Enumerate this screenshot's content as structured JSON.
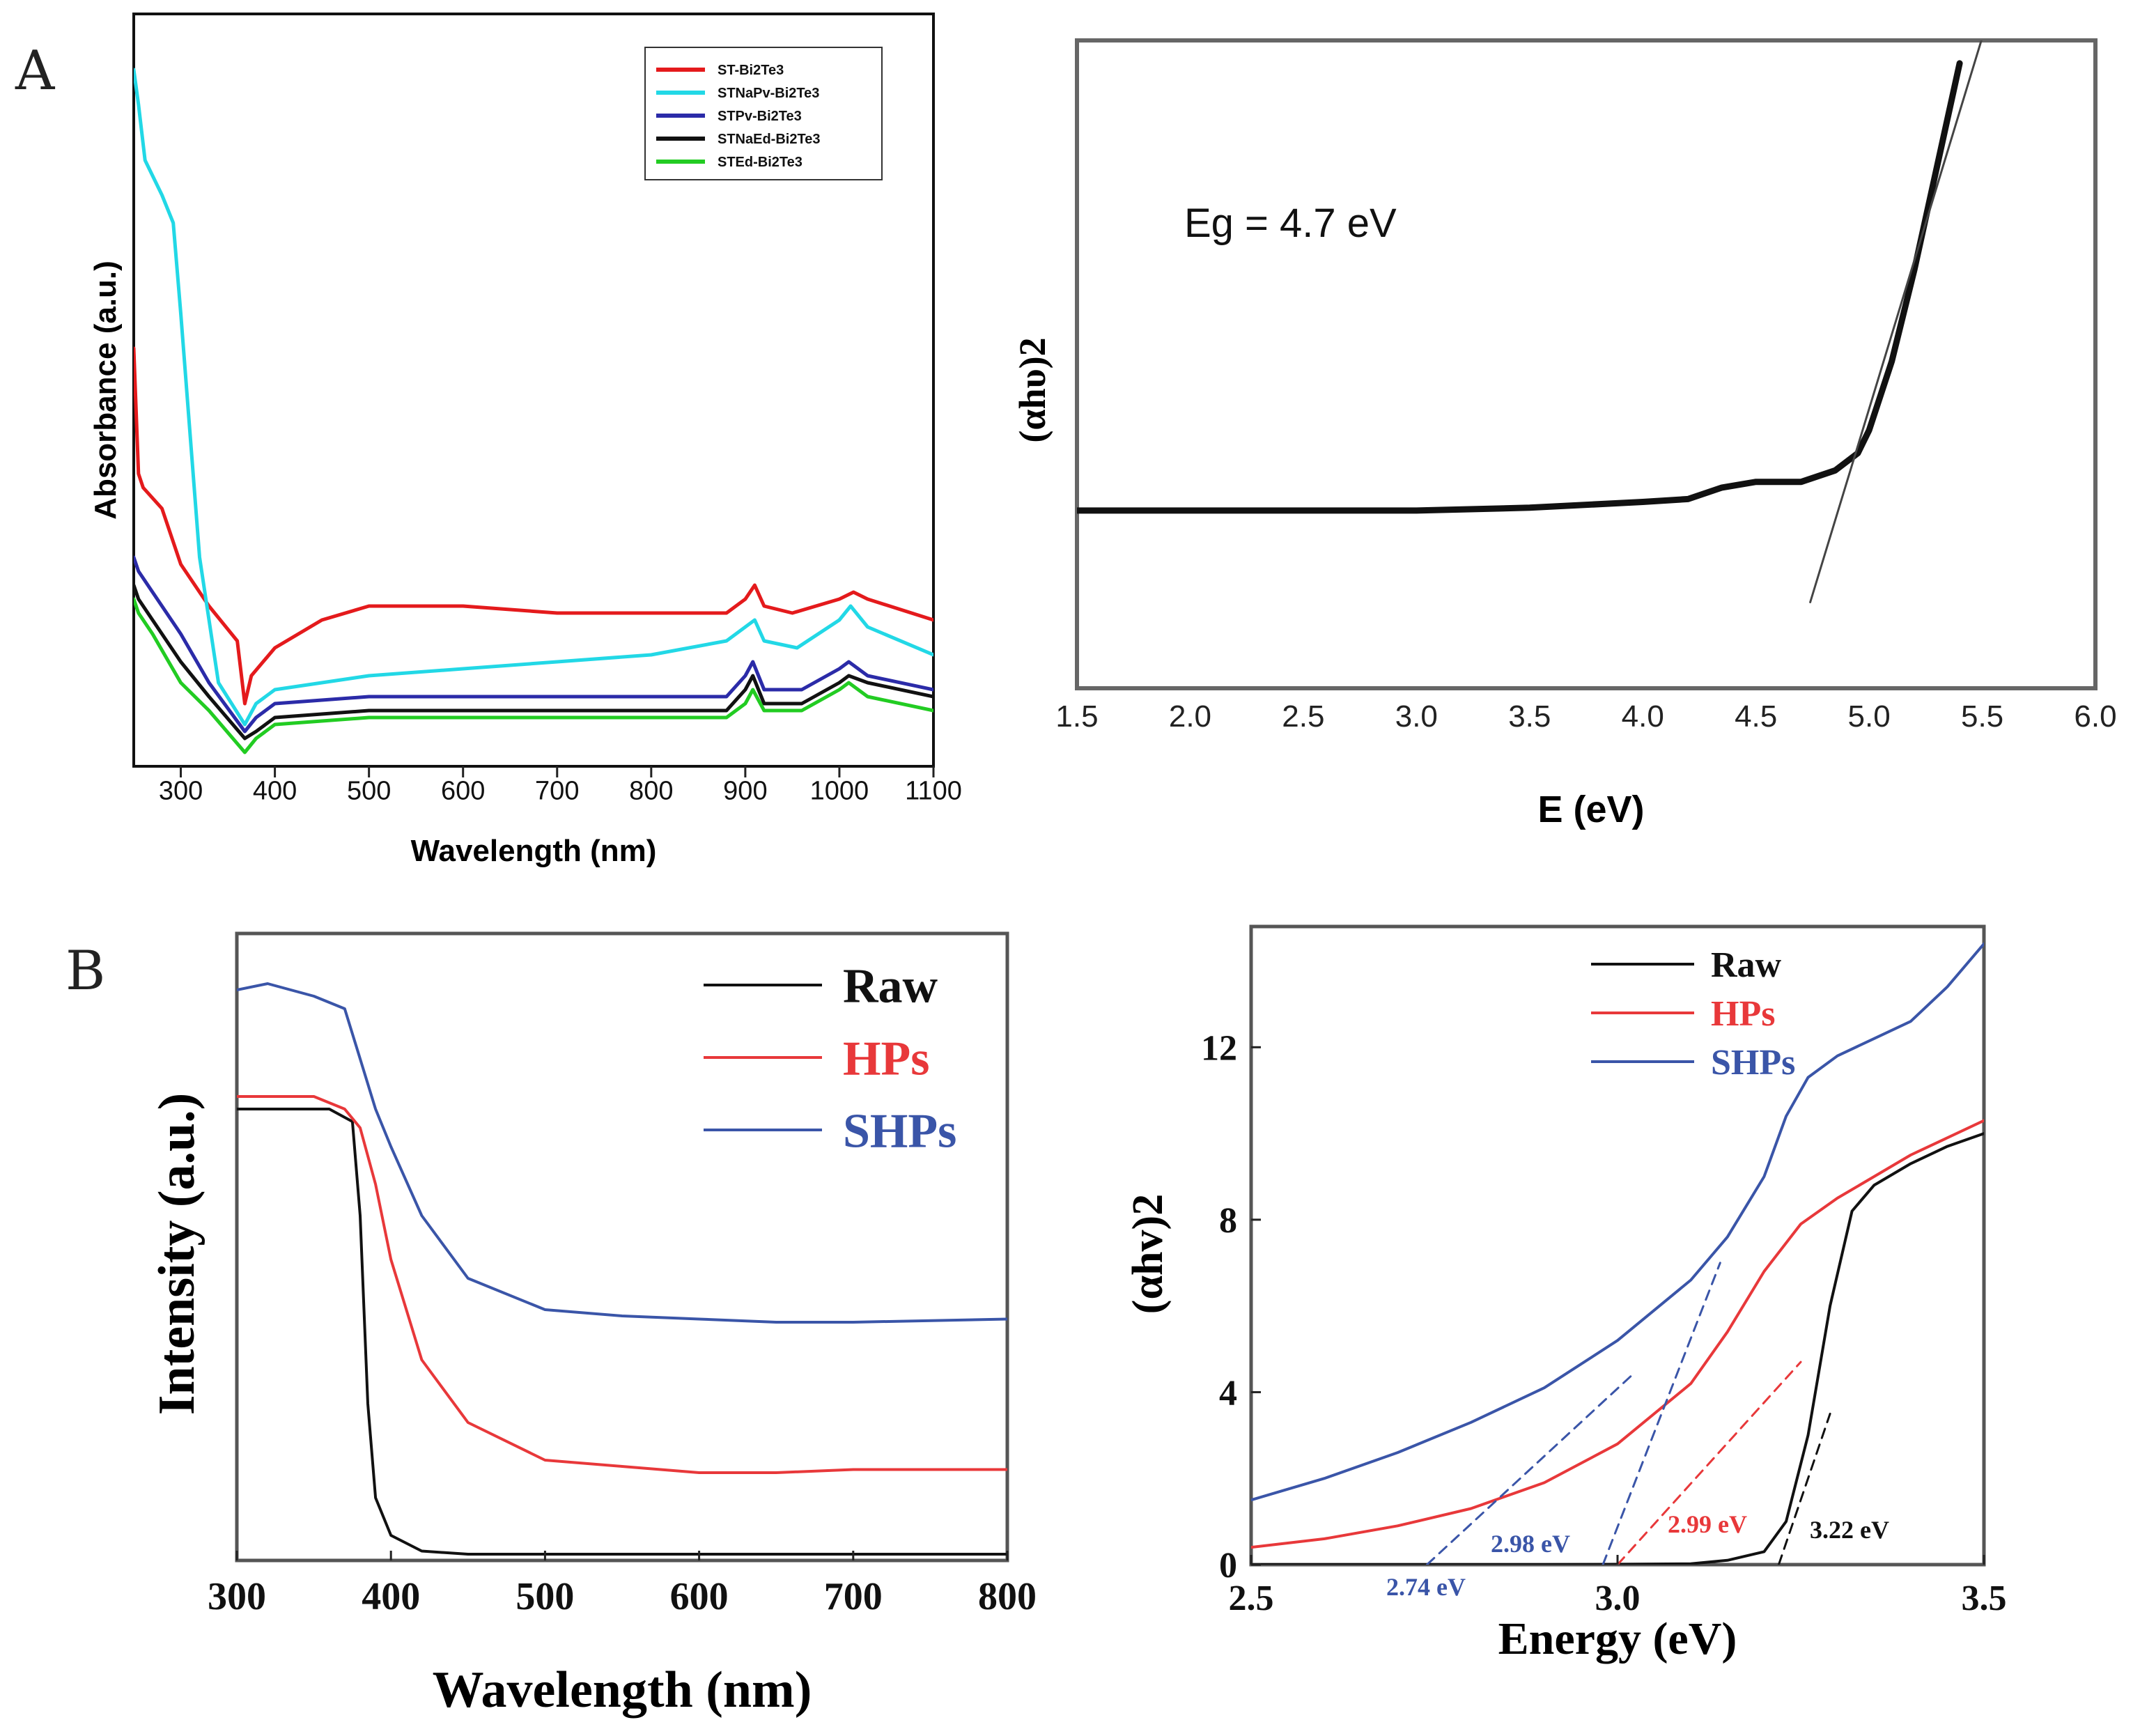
{
  "panel_labels": {
    "a": "A",
    "b": "B"
  },
  "chart_data": [
    {
      "id": "a-left",
      "type": "line",
      "title": "",
      "xlabel": "Wavelength (nm)",
      "ylabel": "Absorbance (a.u.)",
      "xlim": [
        250,
        1100
      ],
      "ylim": [
        0,
        1
      ],
      "xticks": [
        300,
        400,
        500,
        600,
        700,
        800,
        900,
        1000,
        1100
      ],
      "legend": "top-right",
      "series": [
        {
          "name": "ST-Bi2Te3",
          "color": "#e41a1c",
          "x": [
            250,
            255,
            260,
            280,
            300,
            330,
            360,
            368,
            375,
            400,
            450,
            500,
            600,
            700,
            800,
            880,
            900,
            910,
            920,
            950,
            1000,
            1015,
            1030,
            1100
          ],
          "y": [
            0.6,
            0.42,
            0.4,
            0.37,
            0.29,
            0.23,
            0.18,
            0.09,
            0.13,
            0.17,
            0.21,
            0.23,
            0.23,
            0.22,
            0.22,
            0.22,
            0.24,
            0.26,
            0.23,
            0.22,
            0.24,
            0.25,
            0.24,
            0.21
          ]
        },
        {
          "name": "STNaPv-Bi2Te3",
          "color": "#22d8e6",
          "x": [
            250,
            255,
            262,
            280,
            292,
            300,
            320,
            340,
            368,
            380,
            400,
            450,
            500,
            600,
            700,
            800,
            880,
            900,
            910,
            920,
            955,
            1000,
            1012,
            1030,
            1100
          ],
          "y": [
            1.0,
            0.95,
            0.87,
            0.82,
            0.78,
            0.65,
            0.3,
            0.12,
            0.06,
            0.09,
            0.11,
            0.12,
            0.13,
            0.14,
            0.15,
            0.16,
            0.18,
            0.2,
            0.21,
            0.18,
            0.17,
            0.21,
            0.23,
            0.2,
            0.16
          ]
        },
        {
          "name": "STPv-Bi2Te3",
          "color": "#2b2ba8",
          "x": [
            250,
            255,
            270,
            300,
            330,
            368,
            380,
            400,
            500,
            600,
            700,
            800,
            880,
            900,
            908,
            920,
            960,
            1000,
            1010,
            1030,
            1100
          ],
          "y": [
            0.3,
            0.28,
            0.25,
            0.19,
            0.12,
            0.05,
            0.07,
            0.09,
            0.1,
            0.1,
            0.1,
            0.1,
            0.1,
            0.13,
            0.15,
            0.11,
            0.11,
            0.14,
            0.15,
            0.13,
            0.11
          ]
        },
        {
          "name": "STNaEd-Bi2Te3",
          "color": "#111111",
          "x": [
            250,
            255,
            270,
            300,
            330,
            368,
            380,
            400,
            500,
            600,
            700,
            800,
            880,
            900,
            908,
            920,
            960,
            1000,
            1010,
            1030,
            1100
          ],
          "y": [
            0.26,
            0.24,
            0.21,
            0.15,
            0.1,
            0.04,
            0.05,
            0.07,
            0.08,
            0.08,
            0.08,
            0.08,
            0.08,
            0.11,
            0.13,
            0.09,
            0.09,
            0.12,
            0.13,
            0.12,
            0.1
          ]
        },
        {
          "name": "STEd-Bi2Te3",
          "color": "#22cc22",
          "x": [
            250,
            255,
            270,
            300,
            330,
            368,
            380,
            400,
            500,
            600,
            700,
            800,
            880,
            900,
            908,
            920,
            960,
            1000,
            1010,
            1030,
            1100
          ],
          "y": [
            0.24,
            0.22,
            0.19,
            0.12,
            0.08,
            0.02,
            0.04,
            0.06,
            0.07,
            0.07,
            0.07,
            0.07,
            0.07,
            0.09,
            0.11,
            0.08,
            0.08,
            0.11,
            0.12,
            0.1,
            0.08
          ]
        }
      ]
    },
    {
      "id": "a-right",
      "type": "line",
      "title": "",
      "xlabel": "E (eV)",
      "ylabel": "(αhυ)2",
      "annotation": "Eg = 4.7  eV",
      "xlim": [
        1.5,
        6.0
      ],
      "ylim": [
        0,
        1
      ],
      "xticks": [
        "1.5",
        "2.0",
        "2.5",
        "3.0",
        "3.5",
        "4.0",
        "4.5",
        "5.0",
        "5.5",
        "6.0"
      ],
      "series": [
        {
          "name": "data",
          "color": "#111111",
          "x": [
            1.5,
            2.0,
            2.5,
            3.0,
            3.5,
            4.0,
            4.2,
            4.35,
            4.5,
            4.7,
            4.85,
            4.95,
            5.0,
            5.1,
            5.2,
            5.3,
            5.4
          ],
          "y": [
            0.16,
            0.16,
            0.16,
            0.16,
            0.165,
            0.175,
            0.18,
            0.2,
            0.21,
            0.21,
            0.23,
            0.26,
            0.3,
            0.42,
            0.58,
            0.76,
            0.94
          ]
        },
        {
          "name": "tangent",
          "color": "#444444",
          "x": [
            4.74,
            5.55
          ],
          "y": [
            0.0,
            1.05
          ]
        }
      ]
    },
    {
      "id": "b-left",
      "type": "line",
      "title": "",
      "xlabel": "Wavelength (nm)",
      "ylabel": "Intensity (a.u.)",
      "xlim": [
        300,
        800
      ],
      "ylim": [
        0,
        1
      ],
      "xticks": [
        300,
        400,
        500,
        600,
        700,
        800
      ],
      "legend": "top-right",
      "series": [
        {
          "name": "Raw",
          "color": "#111111",
          "x": [
            300,
            360,
            375,
            380,
            385,
            390,
            400,
            420,
            450,
            500,
            600,
            700,
            800
          ],
          "y": [
            0.72,
            0.72,
            0.7,
            0.55,
            0.25,
            0.1,
            0.04,
            0.015,
            0.01,
            0.01,
            0.01,
            0.01,
            0.01
          ]
        },
        {
          "name": "HPs",
          "color": "#e8383a",
          "x": [
            300,
            350,
            370,
            380,
            390,
            400,
            420,
            450,
            500,
            550,
            600,
            650,
            700,
            800
          ],
          "y": [
            0.74,
            0.74,
            0.72,
            0.69,
            0.6,
            0.48,
            0.32,
            0.22,
            0.16,
            0.15,
            0.14,
            0.14,
            0.145,
            0.145
          ]
        },
        {
          "name": "SHPs",
          "color": "#3a55a8",
          "x": [
            300,
            320,
            350,
            370,
            380,
            390,
            400,
            420,
            450,
            500,
            550,
            600,
            650,
            700,
            800
          ],
          "y": [
            0.91,
            0.92,
            0.9,
            0.88,
            0.8,
            0.72,
            0.66,
            0.55,
            0.45,
            0.4,
            0.39,
            0.385,
            0.38,
            0.38,
            0.385
          ]
        }
      ]
    },
    {
      "id": "b-right",
      "type": "line",
      "title": "",
      "xlabel": "Energy (eV)",
      "ylabel": "(αhv)2",
      "xlim": [
        2.5,
        3.5
      ],
      "ylim": [
        0,
        14.8
      ],
      "xticks": [
        "2.5",
        "3.0",
        "3.5"
      ],
      "yticks": [
        "0",
        "4",
        "8",
        "12"
      ],
      "legend": "top",
      "annotations": [
        {
          "text": "2.74 eV",
          "color": "#3a55a8"
        },
        {
          "text": "2.98 eV",
          "color": "#3a55a8"
        },
        {
          "text": "2.99 eV",
          "color": "#e8383a"
        },
        {
          "text": "3.22 eV",
          "color": "#111111"
        }
      ],
      "series": [
        {
          "name": "Raw",
          "color": "#111111",
          "x": [
            2.5,
            2.9,
            3.1,
            3.15,
            3.2,
            3.23,
            3.26,
            3.29,
            3.32,
            3.35,
            3.4,
            3.45,
            3.5
          ],
          "y": [
            0,
            0,
            0.02,
            0.1,
            0.3,
            1.0,
            3.0,
            6.0,
            8.2,
            8.8,
            9.3,
            9.7,
            10.0
          ]
        },
        {
          "name": "HPs",
          "color": "#e8383a",
          "x": [
            2.5,
            2.6,
            2.7,
            2.8,
            2.9,
            3.0,
            3.1,
            3.15,
            3.2,
            3.25,
            3.3,
            3.35,
            3.4,
            3.45,
            3.5
          ],
          "y": [
            0.4,
            0.6,
            0.9,
            1.3,
            1.9,
            2.8,
            4.2,
            5.4,
            6.8,
            7.9,
            8.5,
            9.0,
            9.5,
            9.9,
            10.3
          ]
        },
        {
          "name": "SHPs",
          "color": "#3a55a8",
          "x": [
            2.5,
            2.6,
            2.7,
            2.8,
            2.9,
            3.0,
            3.1,
            3.15,
            3.2,
            3.23,
            3.26,
            3.3,
            3.35,
            3.4,
            3.45,
            3.5
          ],
          "y": [
            1.5,
            2.0,
            2.6,
            3.3,
            4.1,
            5.2,
            6.6,
            7.6,
            9.0,
            10.4,
            11.3,
            11.8,
            12.2,
            12.6,
            13.4,
            14.4
          ]
        },
        {
          "name": "2.74 eV tangent",
          "color": "#3a55a8",
          "dashed": true,
          "x": [
            2.74,
            3.02
          ],
          "y": [
            0,
            4.4
          ]
        },
        {
          "name": "2.98 eV tangent",
          "color": "#3a55a8",
          "dashed": true,
          "x": [
            2.98,
            3.14
          ],
          "y": [
            0,
            7.0
          ]
        },
        {
          "name": "2.99 eV tangent",
          "color": "#e8383a",
          "dashed": true,
          "x": [
            3.0,
            3.25
          ],
          "y": [
            0,
            4.7
          ]
        },
        {
          "name": "3.22 eV tangent",
          "color": "#111111",
          "dashed": true,
          "x": [
            3.22,
            3.29
          ],
          "y": [
            0,
            3.5
          ]
        }
      ]
    }
  ]
}
